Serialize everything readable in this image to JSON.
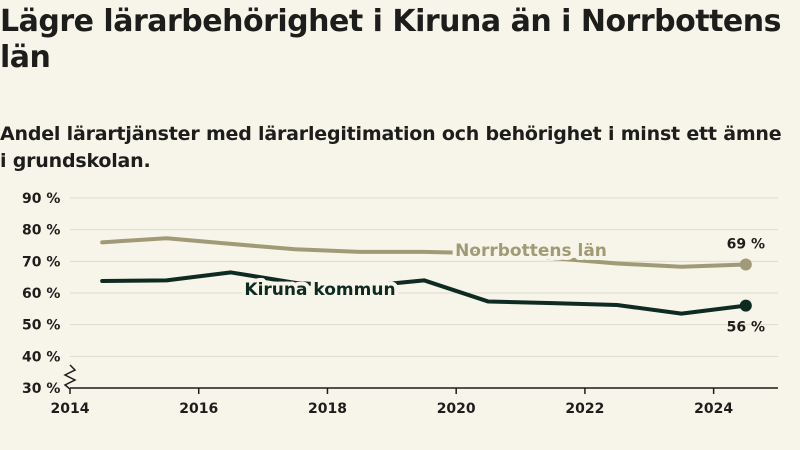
{
  "chart_data": {
    "type": "line",
    "title": "Lägre lärarbehörighet i Kiruna än i Norrbottens län",
    "subtitle": "Andel lärartjänster med lärarlegitimation och behörighet i minst ett ämne i grundskolan.",
    "x": [
      2014.5,
      2015.5,
      2016.5,
      2017.5,
      2018.5,
      2019.5,
      2020.5,
      2021.5,
      2022.5,
      2023.5,
      2024.5
    ],
    "xlim": [
      2014,
      2025
    ],
    "x_ticks": [
      {
        "value": 2014,
        "label": "2014"
      },
      {
        "value": 2016,
        "label": "2016"
      },
      {
        "value": 2018,
        "label": "2018"
      },
      {
        "value": 2020,
        "label": "2020"
      },
      {
        "value": 2022,
        "label": "2022"
      },
      {
        "value": 2024,
        "label": "2024"
      }
    ],
    "ylim": [
      30,
      90
    ],
    "y_ticks": [
      {
        "value": 30,
        "label": "30 %"
      },
      {
        "value": 40,
        "label": "40 %"
      },
      {
        "value": 50,
        "label": "50 %"
      },
      {
        "value": 60,
        "label": "60 %"
      },
      {
        "value": 70,
        "label": "70 %"
      },
      {
        "value": 80,
        "label": "80 %"
      },
      {
        "value": 90,
        "label": "90 %"
      }
    ],
    "axis_break": true,
    "grid": true,
    "series": [
      {
        "name": "Norrbottens län",
        "color": "#a09b76",
        "values": [
          76,
          77.3,
          75.5,
          73.8,
          73,
          73,
          72.5,
          71,
          69.3,
          68.3,
          69
        ],
        "end_label": "69 %"
      },
      {
        "name": "Kiruna kommun",
        "color": "#0e2b22",
        "values": [
          63.8,
          64,
          66.5,
          63.2,
          62,
          64,
          57.3,
          56.8,
          56.2,
          53.5,
          56
        ],
        "end_label": "56 %"
      }
    ]
  }
}
